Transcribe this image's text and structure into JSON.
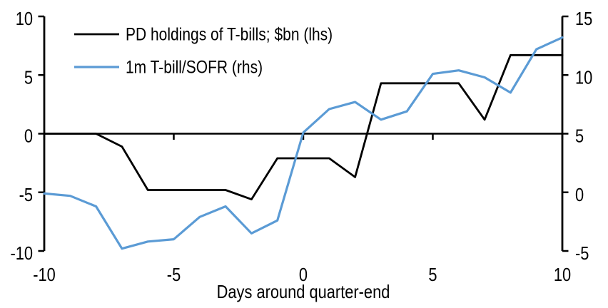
{
  "chart_data": {
    "type": "line",
    "title": "",
    "xlabel": "Days around quarter-end",
    "ylabel_left": "",
    "ylabel_right": "",
    "grid": false,
    "legend_position": "top-left",
    "x": [
      -10,
      -9,
      -8,
      -7,
      -6,
      -5,
      -4,
      -3,
      -2,
      -1,
      0,
      1,
      2,
      3,
      4,
      5,
      6,
      7,
      8,
      9,
      10
    ],
    "x_axis": {
      "min": -10,
      "max": 10,
      "ticks": [
        -10,
        -5,
        0,
        5,
        10
      ]
    },
    "left_axis": {
      "min": -10,
      "max": 10,
      "ticks": [
        10,
        5,
        0,
        -5,
        -10
      ]
    },
    "right_axis": {
      "min": -5,
      "max": 15,
      "ticks": [
        15,
        10,
        5,
        0,
        -5
      ]
    },
    "series": [
      {
        "name": "PD holdings of T-bills; $bn (lhs)",
        "axis": "left",
        "color": "#000000",
        "width": 2.8,
        "values": [
          0,
          0,
          0,
          -1.1,
          -4.8,
          -4.8,
          -4.8,
          -4.8,
          -5.6,
          -2.1,
          -2.1,
          -2.1,
          -3.7,
          4.3,
          4.3,
          4.3,
          4.3,
          1.2,
          6.7,
          6.7,
          6.7
        ]
      },
      {
        "name": "1m T-bill/SOFR (rhs)",
        "axis": "right",
        "color": "#5B9BD5",
        "width": 3.2,
        "values": [
          -0.1,
          -0.3,
          -1.2,
          -4.8,
          -4.2,
          -4.0,
          -2.1,
          -1.2,
          -3.5,
          -2.4,
          5.1,
          7.1,
          7.7,
          6.2,
          6.9,
          10.1,
          10.4,
          9.8,
          8.5,
          12.2,
          13.2
        ]
      }
    ]
  },
  "colors": {
    "background": "#ffffff",
    "axis": "#000000",
    "text": "#000000",
    "series_pd_holdings": "#000000",
    "series_tbill_sofr": "#5B9BD5"
  }
}
